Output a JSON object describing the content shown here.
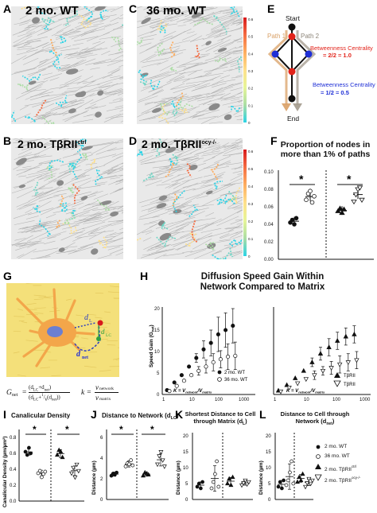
{
  "panels": {
    "A": {
      "letter": "A",
      "title": "2 mo. WT"
    },
    "B": {
      "letter": "B",
      "title_main": "2 mo. TβRII",
      "title_sup": "ctrl"
    },
    "C": {
      "letter": "C",
      "title": "36 mo. WT"
    },
    "D": {
      "letter": "D",
      "title_main": "2 mo. TβRII",
      "title_sup": "ocy-/-"
    },
    "E": {
      "letter": "E"
    },
    "F": {
      "letter": "F"
    },
    "G": {
      "letter": "G"
    },
    "H": {
      "letter": "H"
    },
    "I": {
      "letter": "I"
    },
    "J": {
      "letter": "J"
    },
    "K": {
      "letter": "K"
    },
    "L": {
      "letter": "L"
    }
  },
  "colorbar": {
    "ticks": [
      "0.6",
      "0.5",
      "0.4",
      "0.3",
      "0.2",
      "0.1",
      "0"
    ],
    "colors": [
      "#d7191c",
      "#f46d43",
      "#fdae61",
      "#fee08b",
      "#e6f598",
      "#abdda4",
      "#2bd3e6"
    ]
  },
  "diagram_e": {
    "start": "Start",
    "end": "End",
    "path1": "Path 1",
    "path2": "Path 2",
    "bc_red": "Betweenness Centrality",
    "bc_red_eq": "= 2/2 = 1.0",
    "bc_blue": "Betweenness Centrality",
    "bc_blue_eq": "= 1/2 = 0.5",
    "colors": {
      "red": "#e2231a",
      "blue": "#1f2fd6",
      "path": "#d9a066",
      "node": "#111111"
    }
  },
  "panel_f": {
    "title_line1": "Proportion of nodes in",
    "title_line2": "more than 1% of paths",
    "y_ticks": [
      "0.10",
      "0.08",
      "0.06",
      "0.04",
      "0.02",
      "0.00"
    ],
    "sig": [
      "*",
      "*"
    ]
  },
  "panel_g": {
    "d_l": "d",
    "d_l_sub": "L",
    "d_lc": "d",
    "d_lc_sub": "LC",
    "d_net": "d",
    "d_net_sub": "net",
    "formula_left": "G",
    "formula_left_sub": "net",
    "formula_eq": "= (d",
    "formula_k": "k =",
    "formula_k_num": "v",
    "formula_k_num_sub": "network",
    "formula_k_den": "v",
    "formula_k_den_sub": "matrix",
    "colors": {
      "bg": "#f4e07a",
      "cell": "#f3a64a",
      "nucleus": "#6b7fd1",
      "red_dot": "#d7191c",
      "green_dot": "#2ea043"
    }
  },
  "panel_h": {
    "title_line1": "Diffusion Speed Gain Within",
    "title_line2": "Network Compared to Matrix",
    "y_label": "Speed Gain (G",
    "y_label_sub": "net",
    "x_label": "K = V",
    "y_ticks": [
      "20",
      "15",
      "10",
      "5",
      "0"
    ],
    "x_ticks": [
      "1",
      "10",
      "100",
      "1000"
    ],
    "legend_left": [
      "2 mo. WT",
      "36 mo. WT"
    ],
    "legend_right": [
      "TβRII",
      "TβRII"
    ],
    "legend_right_sup": [
      "ctrl",
      "ocy-/-"
    ]
  },
  "panel_i": {
    "title": "Canalicular Density",
    "y_label": "Canalicular Density (µm/µm²)",
    "y_ticks": [
      "0.8",
      "0.6",
      "0.4",
      "0.2",
      "0.0"
    ],
    "sig": [
      "*",
      "*"
    ]
  },
  "panel_j": {
    "title": "Distance to Network (d",
    "title_sub": "LC",
    "y_label": "Distance (µm)",
    "y_ticks": [
      "6",
      "4",
      "2",
      "0"
    ],
    "sig": [
      "*",
      "*"
    ]
  },
  "panel_k": {
    "title_line1": "Shortest Distance to Cell",
    "title_line2": "through Matrix (d",
    "title_sub": "L",
    "y_label": "Distance (µm)",
    "y_ticks": [
      "20",
      "15",
      "10",
      "5",
      "0"
    ]
  },
  "panel_l": {
    "title_line1": "Distance to Cell through",
    "title_line2": "Network (d",
    "title_sub": "net",
    "y_label": "Distance (µm)",
    "y_ticks": [
      "20",
      "15",
      "10",
      "5",
      "0"
    ]
  },
  "legend_bottom": {
    "items": [
      "2 mo. WT",
      "36 mo. WT",
      "2 mo. TβRII",
      "2 mo. TβRII"
    ],
    "sups": [
      "",
      "",
      "ctrl",
      "ocy-/-"
    ]
  }
}
